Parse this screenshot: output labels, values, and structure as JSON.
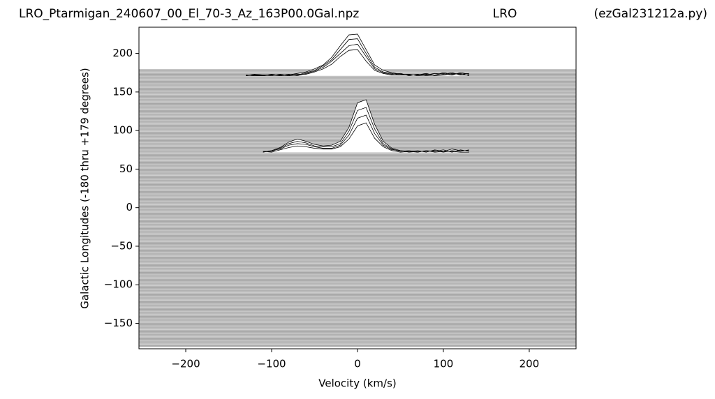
{
  "chart_data": {
    "type": "line",
    "title": "LRO_Ptarmigan_240607_00_El_70-3_Az_163P00.0Gal.npz",
    "subtitle": "LRO",
    "annotation": "(ezGal231212a.py)",
    "x_label": "Velocity (km/s)",
    "y_label": "Galactic Longitudes    (-180 thru +179 degrees)",
    "xlim": [
      -254.5,
      254.5
    ],
    "ylim": [
      -183,
      234
    ],
    "xticks": [
      {
        "value": -200,
        "label": "−200"
      },
      {
        "value": -100,
        "label": "−100"
      },
      0,
      100,
      200
    ],
    "yticks": [
      {
        "value": -150,
        "label": "−150"
      },
      {
        "value": -100,
        "label": "−100"
      },
      {
        "value": -50,
        "label": "−50"
      },
      0,
      50,
      100,
      150,
      200
    ],
    "x": [
      -130,
      -120,
      -110,
      -100,
      -90,
      -80,
      -70,
      -60,
      -50,
      -40,
      -30,
      -20,
      -10,
      0,
      10,
      20,
      30,
      40,
      50,
      60,
      70,
      80,
      90,
      100,
      110,
      120,
      130
    ],
    "series": [
      {
        "color": "#000000",
        "values": [
          171,
          172,
          171,
          173,
          171,
          172,
          174,
          176,
          180,
          185,
          195,
          210,
          224,
          225,
          205,
          185,
          178,
          175,
          173,
          172,
          172,
          173,
          172,
          174,
          172,
          175,
          173
        ]
      },
      {
        "color": "#000000",
        "values": [
          172,
          171,
          172,
          171,
          173,
          171,
          172,
          175,
          178,
          184,
          192,
          205,
          218,
          219,
          200,
          182,
          176,
          174,
          172,
          173,
          171,
          172,
          174,
          173,
          175,
          172,
          172
        ]
      },
      {
        "color": "#000000",
        "values": [
          171,
          173,
          172,
          172,
          171,
          173,
          171,
          174,
          177,
          182,
          190,
          200,
          210,
          212,
          196,
          180,
          175,
          173,
          174,
          171,
          173,
          171,
          172,
          175,
          173,
          174,
          171
        ]
      },
      {
        "color": "#000000",
        "values": [
          172,
          171,
          171,
          172,
          172,
          171,
          173,
          173,
          176,
          180,
          186,
          196,
          204,
          205,
          190,
          178,
          174,
          172,
          172,
          172,
          172,
          174,
          171,
          172,
          174,
          173,
          174
        ]
      },
      {
        "color": "#000000",
        "values": [
          null,
          null,
          72,
          74,
          78,
          85,
          89,
          86,
          82,
          80,
          81,
          86,
          104,
          136,
          140,
          108,
          86,
          77,
          74,
          73,
          74,
          72,
          75,
          73,
          76,
          74,
          74
        ]
      },
      {
        "color": "#000000",
        "values": [
          null,
          null,
          73,
          73,
          77,
          83,
          86,
          84,
          80,
          79,
          79,
          83,
          99,
          126,
          130,
          102,
          83,
          76,
          73,
          74,
          72,
          74,
          73,
          75,
          72,
          75,
          73
        ]
      },
      {
        "color": "#000000",
        "values": [
          null,
          null,
          72,
          74,
          76,
          81,
          83,
          82,
          79,
          77,
          77,
          81,
          94,
          116,
          120,
          96,
          81,
          75,
          74,
          72,
          73,
          73,
          74,
          72,
          74,
          73,
          75
        ]
      },
      {
        "color": "#000000",
        "values": [
          null,
          null,
          73,
          72,
          75,
          78,
          80,
          79,
          77,
          76,
          76,
          79,
          89,
          106,
          110,
          90,
          79,
          74,
          72,
          73,
          72,
          74,
          72,
          73,
          73,
          72,
          72
        ]
      }
    ]
  }
}
